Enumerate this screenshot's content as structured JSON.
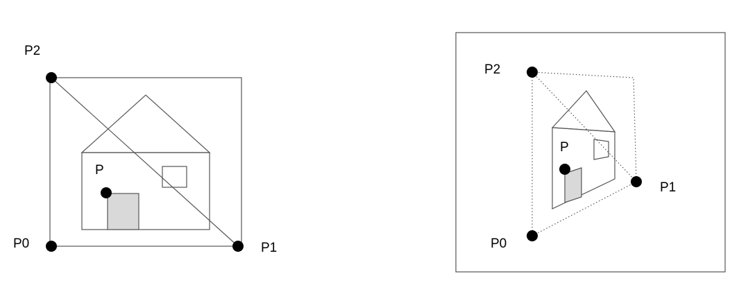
{
  "left_figure": {
    "labels": {
      "p0": "P0",
      "p1": "P1",
      "p2": "P2",
      "p": "P"
    }
  },
  "right_figure": {
    "labels": {
      "p0": "P0",
      "p1": "P1",
      "p2": "P2",
      "p": "P"
    }
  }
}
